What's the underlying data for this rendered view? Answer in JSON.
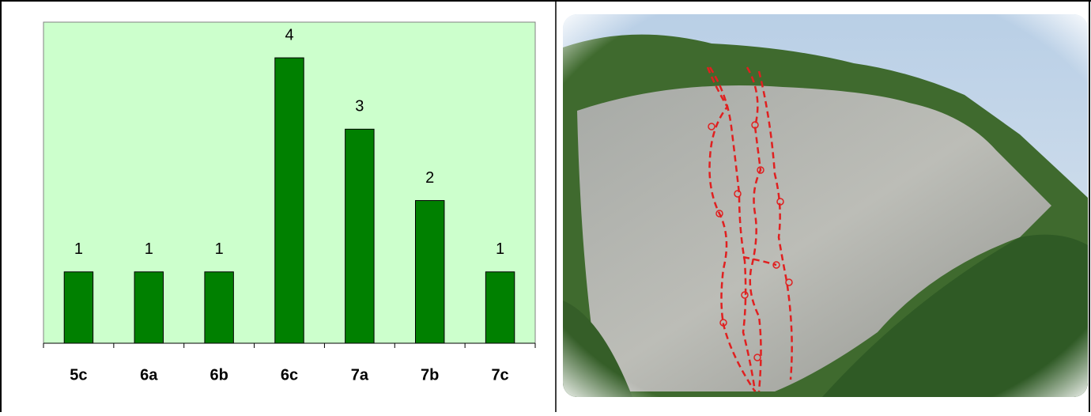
{
  "chart_data": {
    "type": "bar",
    "categories": [
      "5c",
      "6a",
      "6b",
      "6c",
      "7a",
      "7b",
      "7c"
    ],
    "values": [
      1,
      1,
      1,
      4,
      3,
      2,
      1
    ],
    "color": "#008000",
    "plot_background": "#ccffcc",
    "ylim": [
      0,
      4.5
    ]
  }
}
